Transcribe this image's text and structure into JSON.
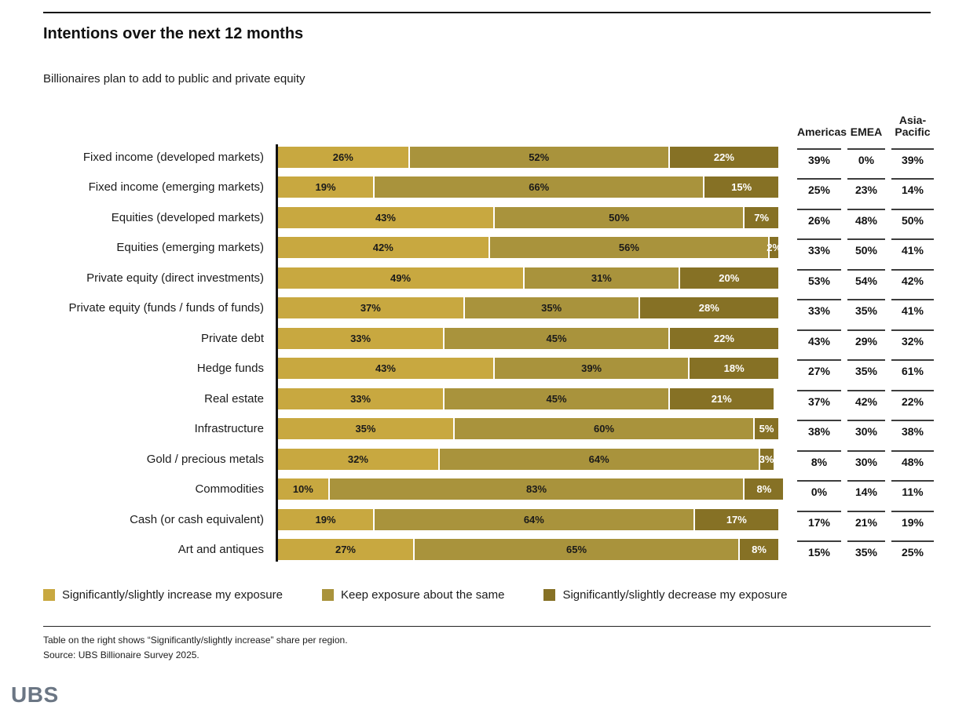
{
  "header": {
    "title": "Intentions over the next 12 months",
    "subtitle": "Billionaires plan to add to public and private equity"
  },
  "chart_data": {
    "type": "bar",
    "stacked": true,
    "orientation": "horizontal",
    "unit": "%",
    "xlim": [
      0,
      100
    ],
    "categories": [
      "Fixed income (developed markets)",
      "Fixed income (emerging markets)",
      "Equities (developed markets)",
      "Equities (emerging markets)",
      "Private equity (direct investments)",
      "Private equity (funds / funds of funds)",
      "Private debt",
      "Hedge funds",
      "Real estate",
      "Infrastructure",
      "Gold / precious metals",
      "Commodities",
      "Cash (or cash equivalent)",
      "Art and antiques"
    ],
    "series": [
      {
        "name": "Significantly/slightly increase my exposure",
        "color": "#C8A840",
        "label_color": "#1a1a1a",
        "values": [
          26,
          19,
          43,
          42,
          49,
          37,
          33,
          43,
          33,
          35,
          32,
          10,
          19,
          27
        ]
      },
      {
        "name": "Keep exposure about the same",
        "color": "#A9933C",
        "label_color": "#1a1a1a",
        "values": [
          52,
          66,
          50,
          56,
          31,
          35,
          45,
          39,
          45,
          60,
          64,
          83,
          64,
          65
        ]
      },
      {
        "name": "Significantly/slightly decrease my exposure",
        "color": "#867125",
        "label_color": "#ffffff",
        "values": [
          22,
          15,
          7,
          2,
          20,
          28,
          22,
          18,
          21,
          5,
          3,
          8,
          17,
          8
        ]
      }
    ],
    "region_table": {
      "columns": [
        "Americas",
        "EMEA",
        "Asia-Pacific"
      ],
      "values": [
        [
          39,
          0,
          39
        ],
        [
          25,
          23,
          14
        ],
        [
          26,
          48,
          50
        ],
        [
          33,
          50,
          41
        ],
        [
          53,
          54,
          42
        ],
        [
          33,
          35,
          41
        ],
        [
          43,
          29,
          32
        ],
        [
          27,
          35,
          61
        ],
        [
          37,
          42,
          22
        ],
        [
          38,
          30,
          38
        ],
        [
          8,
          30,
          48
        ],
        [
          0,
          14,
          11
        ],
        [
          17,
          21,
          19
        ],
        [
          15,
          35,
          25
        ]
      ]
    },
    "legend_position": "bottom",
    "grid": false
  },
  "footnotes": {
    "note": "Table on the right shows “Significantly/slightly increase” share per region.",
    "source": "Source: UBS Billionaire Survey 2025."
  },
  "logo": {
    "text": "UBS"
  }
}
